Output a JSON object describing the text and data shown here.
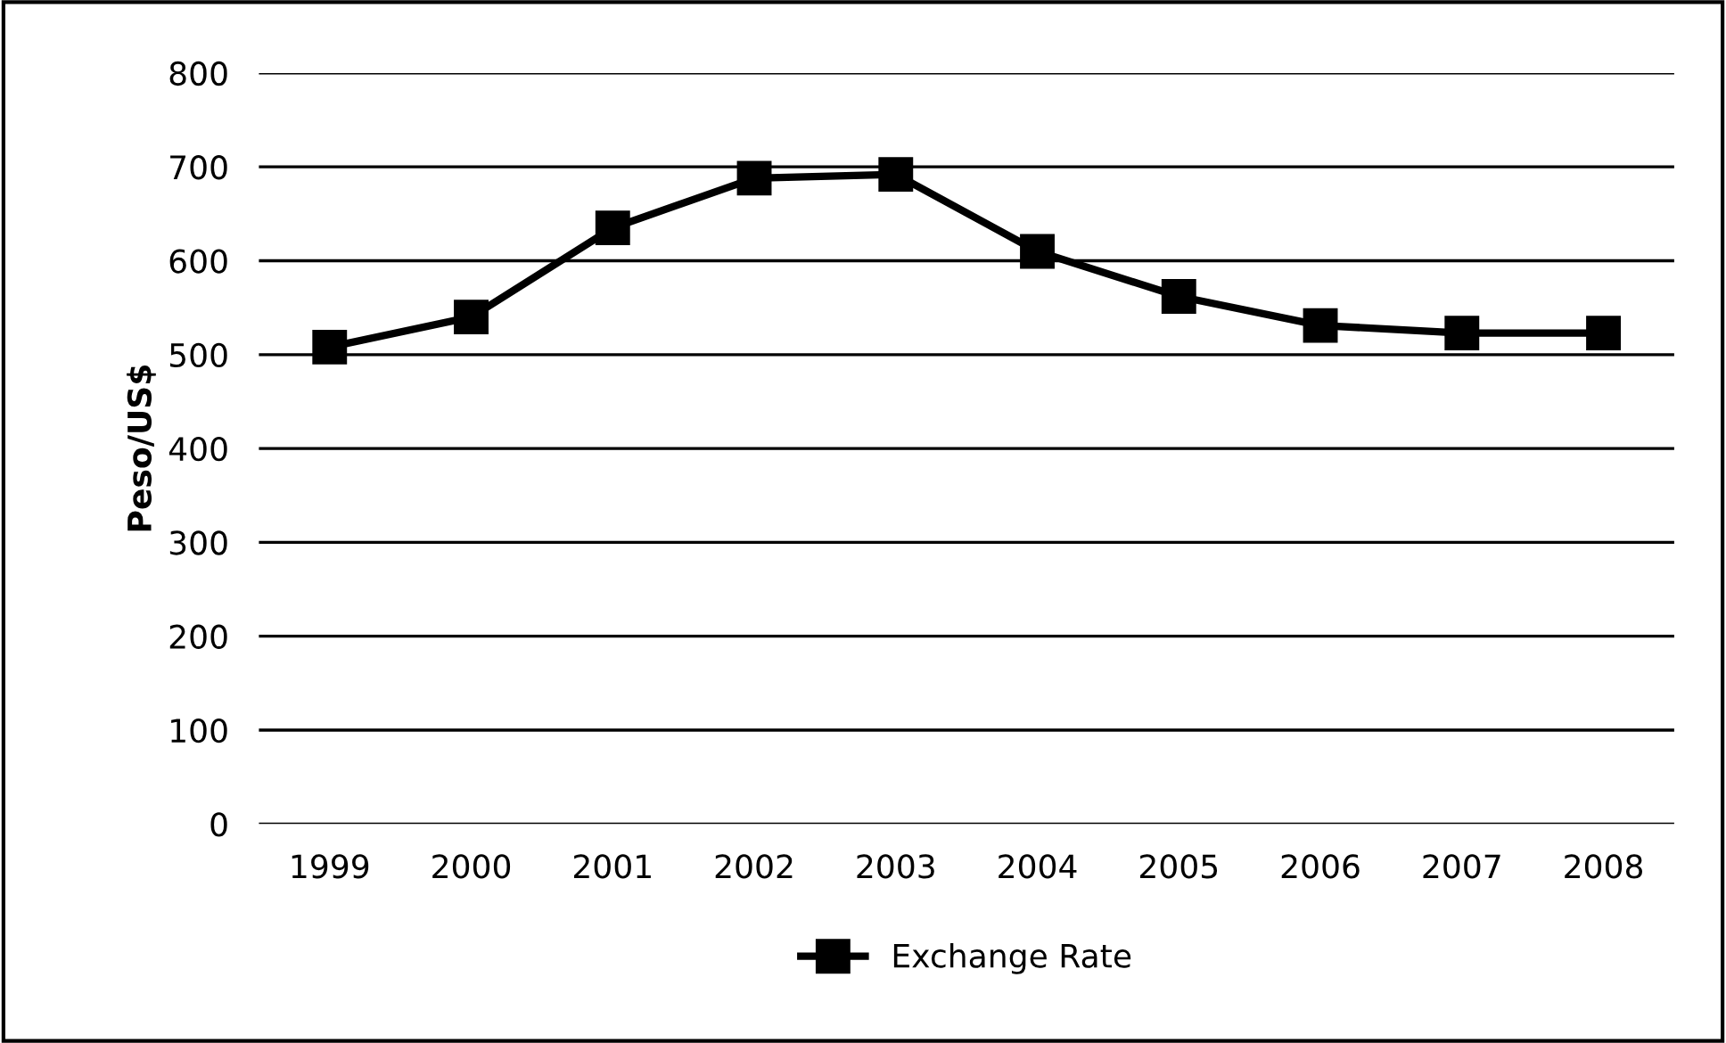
{
  "chart_data": {
    "type": "line",
    "ylabel": "Peso/US$",
    "categories": [
      "1999",
      "2000",
      "2001",
      "2002",
      "2003",
      "2004",
      "2005",
      "2006",
      "2007",
      "2008"
    ],
    "series": [
      {
        "name": "Exchange Rate",
        "color": "#000000",
        "values": [
          508,
          540,
          635,
          688,
          692,
          610,
          562,
          531,
          523,
          523
        ]
      }
    ],
    "ylim": [
      0,
      800
    ],
    "yticks": [
      0,
      100,
      200,
      300,
      400,
      500,
      600,
      700,
      800
    ],
    "grid": "y",
    "legend": "bottom",
    "marker": "square",
    "line_style": "solid"
  }
}
